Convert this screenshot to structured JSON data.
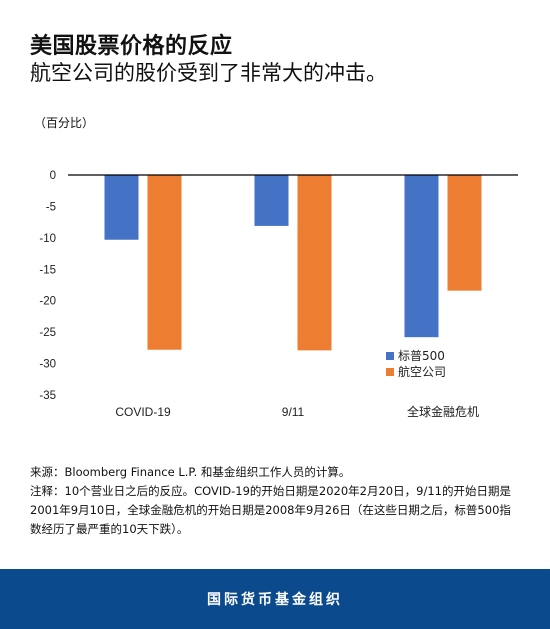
{
  "header": {
    "title": "美国股票价格的反应",
    "subtitle": "航空公司的股价受到了非常大的冲击。"
  },
  "chart_data": {
    "type": "bar",
    "unit_label": "（百分比）",
    "categories": [
      "COVID-19",
      "9/11",
      "全球金融危机"
    ],
    "series": [
      {
        "name": "标普500",
        "values": [
          -10.3,
          -8.1,
          -25.8
        ],
        "color": "#4472c4"
      },
      {
        "name": "航空公司",
        "values": [
          -27.8,
          -27.9,
          -18.4
        ],
        "color": "#ed7d31"
      }
    ],
    "yticks": [
      0,
      -5,
      -10,
      -15,
      -20,
      -25,
      -30,
      -35
    ],
    "ylim": [
      -35,
      0
    ],
    "grid": false,
    "legend_position": "bottom-right"
  },
  "notes": {
    "source": "来源：Bloomberg Finance L.P. 和基金组织工作人员的计算。",
    "note": "注释：10个营业日之后的反应。COVID-19的开始日期是2020年2月20日，9/11的开始日期是2001年9月10日，全球金融危机的开始日期是2008年9月26日（在这些日期之后，标普500指数经历了最严重的10天下跌）。"
  },
  "footer": {
    "org": "国际货币基金组织"
  }
}
